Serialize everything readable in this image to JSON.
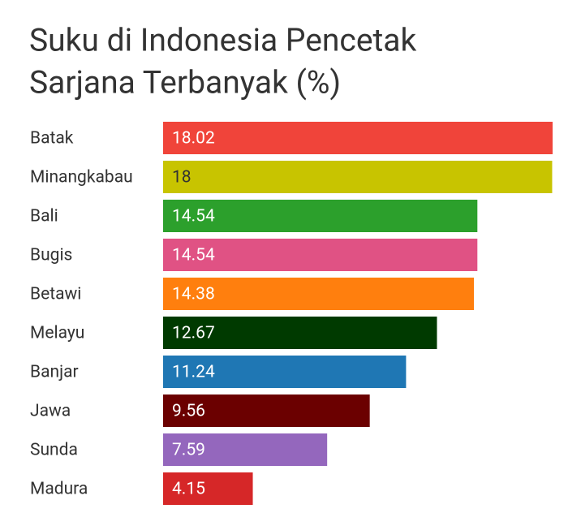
{
  "chart_data": {
    "type": "bar",
    "orientation": "horizontal",
    "title": [
      "Suku di Indonesia Pencetak",
      "Sarjana Terbanyak (%)"
    ],
    "categories": [
      "Batak",
      "Minangkabau",
      "Bali",
      "Bugis",
      "Betawi",
      "Melayu",
      "Banjar",
      "Jawa",
      "Sunda",
      "Madura"
    ],
    "values": [
      18.02,
      18,
      14.54,
      14.54,
      14.38,
      12.67,
      11.24,
      9.56,
      7.59,
      4.15
    ],
    "colors": [
      "#f0443a",
      "#c8c400",
      "#2ca02c",
      "#e05284",
      "#ff7f0e",
      "#003a00",
      "#1f77b4",
      "#6b0000",
      "#9467bd",
      "#d62728"
    ]
  }
}
